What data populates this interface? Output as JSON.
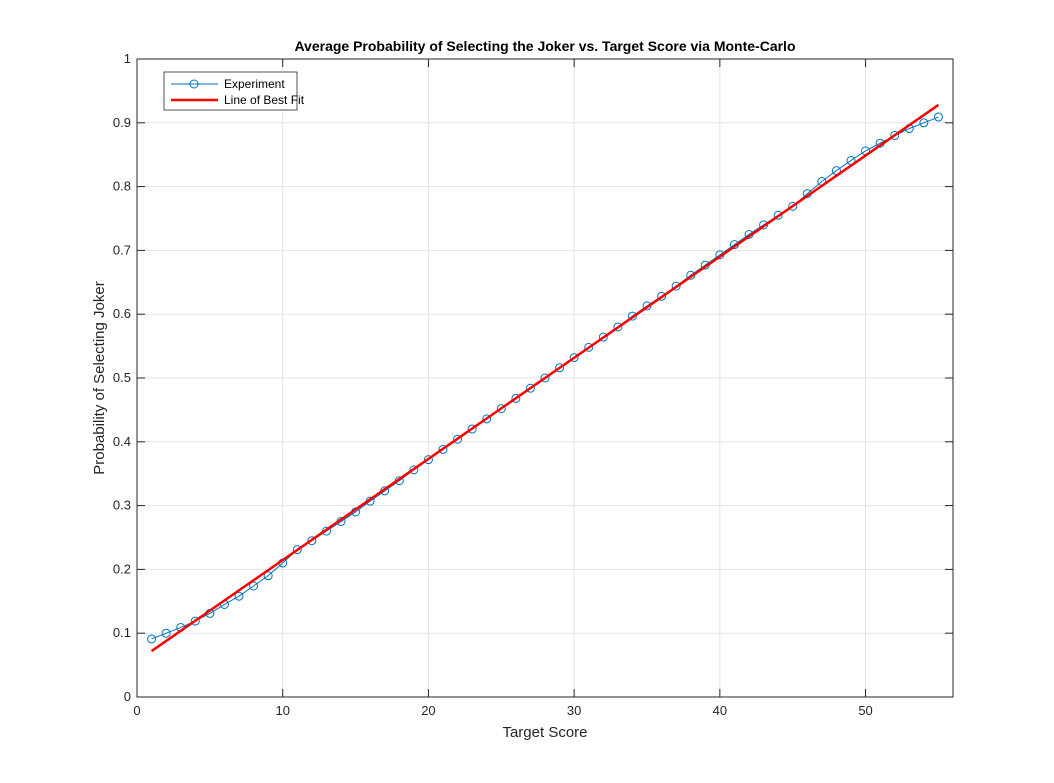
{
  "chart_data": {
    "type": "line",
    "title": "Average Probability of Selecting the Joker vs. Target Score via Monte-Carlo",
    "xlabel": "Target Score",
    "ylabel": "Probability of Selecting Joker",
    "xlim": [
      0,
      56
    ],
    "ylim": [
      0,
      1
    ],
    "xticks": [
      "0",
      "10",
      "20",
      "30",
      "40",
      "50"
    ],
    "yticks": [
      "0",
      "0.1",
      "0.2",
      "0.3",
      "0.4",
      "0.5",
      "0.6",
      "0.7",
      "0.8",
      "0.9",
      "1"
    ],
    "grid": true,
    "legend_position": "top-left",
    "series": [
      {
        "name": "Experiment",
        "style": "line-with-circle-markers",
        "color": "#0072BD",
        "x": [
          1,
          2,
          3,
          4,
          5,
          6,
          7,
          8,
          9,
          10,
          11,
          12,
          13,
          14,
          15,
          16,
          17,
          18,
          19,
          20,
          21,
          22,
          23,
          24,
          25,
          26,
          27,
          28,
          29,
          30,
          31,
          32,
          33,
          34,
          35,
          36,
          37,
          38,
          39,
          40,
          41,
          42,
          43,
          44,
          45,
          46,
          47,
          48,
          49,
          50,
          51,
          52,
          53,
          54,
          55
        ],
        "y": [
          0.091,
          0.1,
          0.109,
          0.119,
          0.131,
          0.145,
          0.158,
          0.174,
          0.19,
          0.21,
          0.231,
          0.245,
          0.26,
          0.275,
          0.29,
          0.307,
          0.323,
          0.339,
          0.356,
          0.372,
          0.388,
          0.404,
          0.42,
          0.436,
          0.452,
          0.468,
          0.484,
          0.5,
          0.516,
          0.532,
          0.548,
          0.564,
          0.58,
          0.597,
          0.613,
          0.628,
          0.644,
          0.661,
          0.677,
          0.693,
          0.709,
          0.725,
          0.74,
          0.755,
          0.769,
          0.789,
          0.808,
          0.825,
          0.841,
          0.856,
          0.868,
          0.88,
          0.891,
          0.9,
          0.909
        ]
      },
      {
        "name": "Line of Best Fit",
        "style": "line",
        "color": "#FF0000",
        "x": [
          1,
          55
        ],
        "y": [
          0.072,
          0.928
        ]
      }
    ]
  }
}
